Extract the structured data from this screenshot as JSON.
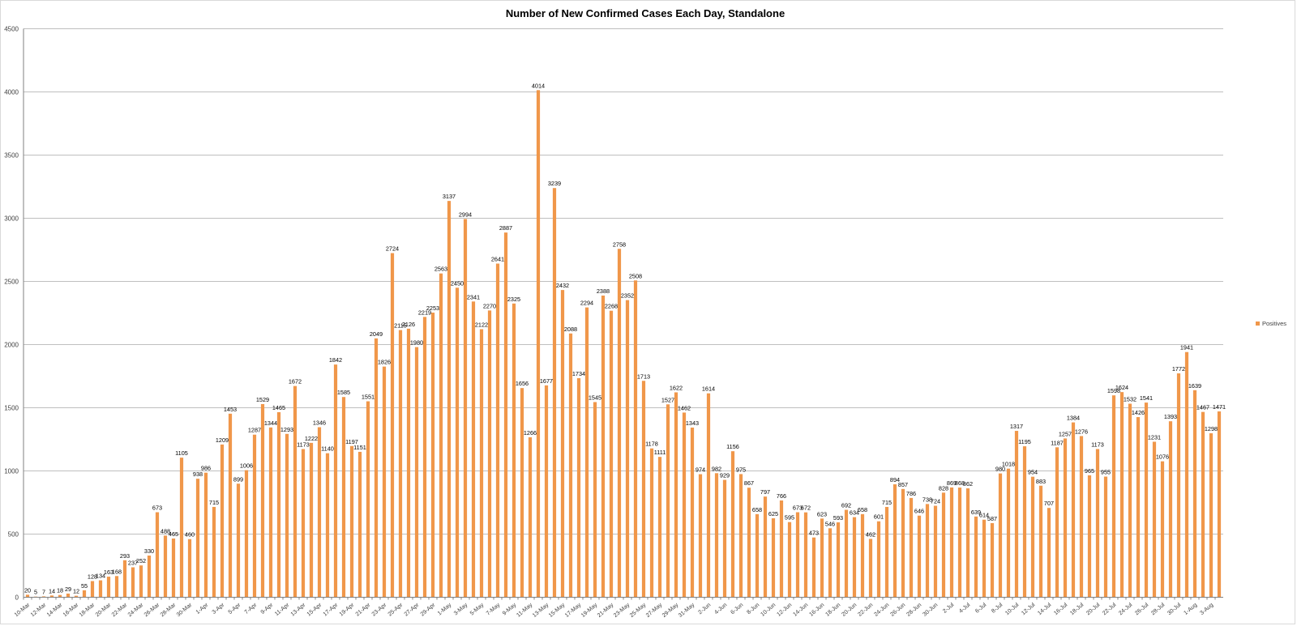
{
  "chart_data": {
    "type": "bar",
    "title": "Number of New Confirmed Cases Each Day, Standalone",
    "xlabel": "",
    "ylabel": "",
    "ylim": [
      0,
      4500
    ],
    "yticks": [
      0,
      500,
      1000,
      1500,
      2000,
      2500,
      3000,
      3500,
      4000,
      4500
    ],
    "grid": true,
    "legend_position": "right",
    "bar_color": "#f0974a",
    "categories": [
      "10-Mar",
      "11-Mar",
      "12-Mar",
      "13-Mar",
      "14-Mar",
      "15-Mar",
      "16-Mar",
      "17-Mar",
      "18-Mar",
      "19-Mar",
      "20-Mar",
      "21-Mar",
      "22-Mar",
      "23-Mar",
      "24-Mar",
      "25-Mar",
      "26-Mar",
      "27-Mar",
      "28-Mar",
      "29-Mar",
      "30-Mar",
      "31-Mar",
      "1-Apr",
      "2-Apr",
      "3-Apr",
      "4-Apr",
      "5-Apr",
      "6-Apr",
      "7-Apr",
      "8-Apr",
      "9-Apr",
      "10-Apr",
      "11-Apr",
      "12-Apr",
      "13-Apr",
      "14-Apr",
      "15-Apr",
      "16-Apr",
      "17-Apr",
      "18-Apr",
      "19-Apr",
      "20-Apr",
      "21-Apr",
      "22-Apr",
      "23-Apr",
      "24-Apr",
      "25-Apr",
      "26-Apr",
      "27-Apr",
      "28-Apr",
      "29-Apr",
      "30-Apr",
      "1-May",
      "2-May",
      "3-May",
      "4-May",
      "5-May",
      "6-May",
      "7-May",
      "8-May",
      "9-May",
      "10-May",
      "11-May",
      "12-May",
      "13-May",
      "14-May",
      "15-May",
      "16-May",
      "17-May",
      "18-May",
      "19-May",
      "20-May",
      "21-May",
      "22-May",
      "23-May",
      "24-May",
      "25-May",
      "26-May",
      "27-May",
      "28-May",
      "29-May",
      "30-May",
      "31-May",
      "1-Jun",
      "2-Jun",
      "3-Jun",
      "4-Jun",
      "5-Jun",
      "6-Jun",
      "7-Jun",
      "8-Jun",
      "9-Jun",
      "10-Jun",
      "11-Jun",
      "12-Jun",
      "13-Jun",
      "14-Jun",
      "15-Jun",
      "16-Jun",
      "17-Jun",
      "18-Jun",
      "19-Jun",
      "20-Jun",
      "21-Jun",
      "22-Jun",
      "23-Jun",
      "24-Jun",
      "25-Jun",
      "26-Jun",
      "27-Jun",
      "28-Jun",
      "29-Jun",
      "30-Jun",
      "1-Jul",
      "2-Jul",
      "3-Jul",
      "4-Jul",
      "5-Jul",
      "6-Jul",
      "7-Jul",
      "8-Jul",
      "9-Jul",
      "10-Jul",
      "11-Jul",
      "12-Jul",
      "13-Jul",
      "14-Jul",
      "15-Jul",
      "16-Jul",
      "17-Jul",
      "18-Jul",
      "19-Jul",
      "20-Jul",
      "21-Jul",
      "22-Jul",
      "23-Jul",
      "24-Jul",
      "25-Jul",
      "26-Jul",
      "27-Jul",
      "28-Jul",
      "29-Jul",
      "30-Jul",
      "31-Jul",
      "1-Aug",
      "2-Aug",
      "3-Aug",
      "4-Aug"
    ],
    "x_tick_labels_shown_every": 2,
    "series": [
      {
        "name": "Positives",
        "values": [
          20,
          5,
          7,
          14,
          18,
          29,
          12,
          55,
          128,
          134,
          163,
          168,
          293,
          237,
          252,
          330,
          673,
          488,
          465,
          1105,
          460,
          938,
          986,
          715,
          1209,
          1453,
          899,
          1006,
          1287,
          1529,
          1344,
          1465,
          1293,
          1672,
          1173,
          1222,
          1346,
          1140,
          1842,
          1585,
          1197,
          1151,
          1551,
          2049,
          1826,
          2724,
          2115,
          2126,
          1980,
          2219,
          2253,
          2563,
          3137,
          2450,
          2994,
          2341,
          2122,
          2270,
          2641,
          2887,
          2325,
          1656,
          1266,
          4014,
          1677,
          3239,
          2432,
          2088,
          1734,
          2294,
          1545,
          2388,
          2268,
          2758,
          2352,
          2508,
          1713,
          1178,
          1111,
          1527,
          1622,
          1462,
          1343,
          974,
          1614,
          982,
          929,
          1156,
          975,
          867,
          658,
          797,
          625,
          766,
          595,
          673,
          672,
          473,
          623,
          546,
          593,
          692,
          634,
          658,
          462,
          601,
          715,
          894,
          857,
          786,
          646,
          738,
          724,
          828,
          869,
          868,
          862,
          639,
          614,
          587,
          980,
          1018,
          1317,
          1195,
          954,
          883,
          707,
          1187,
          1257,
          1384,
          1276,
          965,
          1173,
          955,
          1598,
          1624,
          1532,
          1426,
          1541,
          1231,
          1076,
          1393,
          1772,
          1941,
          1639,
          1467,
          1298,
          1471
        ]
      }
    ]
  }
}
